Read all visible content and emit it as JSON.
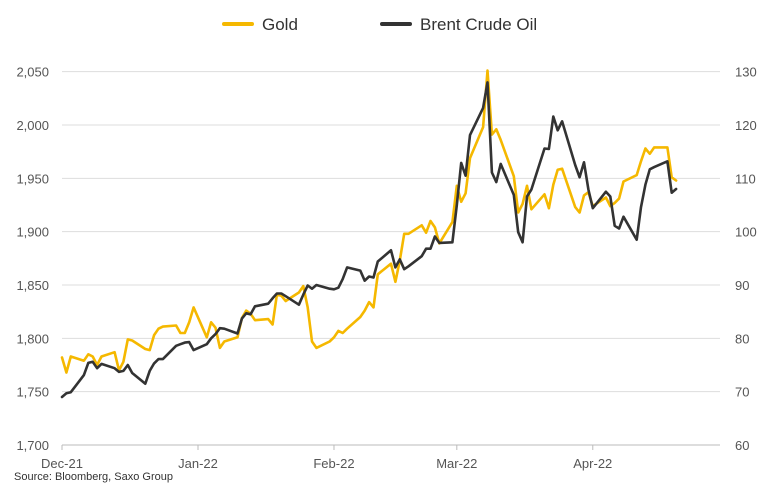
{
  "chart_data": {
    "type": "line",
    "legend": {
      "placement": "top-center",
      "entries": [
        "Gold",
        "Brent Crude Oil"
      ]
    },
    "x_axis": {
      "type": "date",
      "range": [
        "2021-12-01",
        "2022-04-30"
      ],
      "ticks": [
        {
          "date": "2021-12-01",
          "label": "Dec-21"
        },
        {
          "date": "2022-01-01",
          "label": "Jan-22"
        },
        {
          "date": "2022-02-01",
          "label": "Feb-22"
        },
        {
          "date": "2022-03-01",
          "label": "Mar-22"
        },
        {
          "date": "2022-04-01",
          "label": "Apr-22"
        }
      ]
    },
    "y_left": {
      "range": [
        1700,
        2075
      ],
      "ticks": [
        1700,
        1750,
        1800,
        1850,
        1900,
        1950,
        2000,
        2050
      ],
      "tick_labels": [
        "1,700",
        "1,750",
        "1,800",
        "1,850",
        "1,900",
        "1,950",
        "2,000",
        "2,050"
      ]
    },
    "y_right": {
      "range": [
        60,
        135
      ],
      "ticks": [
        60,
        70,
        80,
        90,
        100,
        110,
        120,
        130
      ],
      "tick_labels": [
        "60",
        "70",
        "80",
        "90",
        "100",
        "110",
        "120",
        "130"
      ]
    },
    "grid": {
      "horizontal": true,
      "vertical": false
    },
    "series": [
      {
        "name": "Gold",
        "axis": "left",
        "color": "#F5B800",
        "points": [
          [
            "2021-12-01",
            1782
          ],
          [
            "2021-12-02",
            1768
          ],
          [
            "2021-12-03",
            1783
          ],
          [
            "2021-12-06",
            1779
          ],
          [
            "2021-12-07",
            1785
          ],
          [
            "2021-12-08",
            1783
          ],
          [
            "2021-12-09",
            1775
          ],
          [
            "2021-12-10",
            1783
          ],
          [
            "2021-12-13",
            1787
          ],
          [
            "2021-12-14",
            1770
          ],
          [
            "2021-12-15",
            1778
          ],
          [
            "2021-12-16",
            1799
          ],
          [
            "2021-12-17",
            1798
          ],
          [
            "2021-12-20",
            1790
          ],
          [
            "2021-12-21",
            1789
          ],
          [
            "2021-12-22",
            1803
          ],
          [
            "2021-12-23",
            1809
          ],
          [
            "2021-12-24",
            1811
          ],
          [
            "2021-12-27",
            1812
          ],
          [
            "2021-12-28",
            1805
          ],
          [
            "2021-12-29",
            1805
          ],
          [
            "2021-12-30",
            1815
          ],
          [
            "2021-12-31",
            1829
          ],
          [
            "2022-01-03",
            1801
          ],
          [
            "2022-01-04",
            1815
          ],
          [
            "2022-01-05",
            1810
          ],
          [
            "2022-01-06",
            1791
          ],
          [
            "2022-01-07",
            1797
          ],
          [
            "2022-01-10",
            1801
          ],
          [
            "2022-01-11",
            1819
          ],
          [
            "2022-01-12",
            1826
          ],
          [
            "2022-01-13",
            1823
          ],
          [
            "2022-01-14",
            1817
          ],
          [
            "2022-01-17",
            1818
          ],
          [
            "2022-01-18",
            1813
          ],
          [
            "2022-01-19",
            1841
          ],
          [
            "2022-01-20",
            1840
          ],
          [
            "2022-01-21",
            1835
          ],
          [
            "2022-01-24",
            1843
          ],
          [
            "2022-01-25",
            1849
          ],
          [
            "2022-01-26",
            1829
          ],
          [
            "2022-01-27",
            1797
          ],
          [
            "2022-01-28",
            1791
          ],
          [
            "2022-01-31",
            1797
          ],
          [
            "2022-02-01",
            1801
          ],
          [
            "2022-02-02",
            1807
          ],
          [
            "2022-02-03",
            1805
          ],
          [
            "2022-02-04",
            1809
          ],
          [
            "2022-02-07",
            1820
          ],
          [
            "2022-02-08",
            1826
          ],
          [
            "2022-02-09",
            1834
          ],
          [
            "2022-02-10",
            1829
          ],
          [
            "2022-02-11",
            1860
          ],
          [
            "2022-02-14",
            1870
          ],
          [
            "2022-02-15",
            1853
          ],
          [
            "2022-02-16",
            1873
          ],
          [
            "2022-02-17",
            1898
          ],
          [
            "2022-02-18",
            1898
          ],
          [
            "2022-02-21",
            1906
          ],
          [
            "2022-02-22",
            1899
          ],
          [
            "2022-02-23",
            1910
          ],
          [
            "2022-02-24",
            1904
          ],
          [
            "2022-02-25",
            1889
          ],
          [
            "2022-02-28",
            1909
          ],
          [
            "2022-03-01",
            1943
          ],
          [
            "2022-03-02",
            1928
          ],
          [
            "2022-03-03",
            1936
          ],
          [
            "2022-03-04",
            1969
          ],
          [
            "2022-03-07",
            1998
          ],
          [
            "2022-03-08",
            2051
          ],
          [
            "2022-03-09",
            1991
          ],
          [
            "2022-03-10",
            1996
          ],
          [
            "2022-03-11",
            1986
          ],
          [
            "2022-03-14",
            1952
          ],
          [
            "2022-03-15",
            1918
          ],
          [
            "2022-03-16",
            1926
          ],
          [
            "2022-03-17",
            1943
          ],
          [
            "2022-03-18",
            1921
          ],
          [
            "2022-03-21",
            1935
          ],
          [
            "2022-03-22",
            1922
          ],
          [
            "2022-03-23",
            1944
          ],
          [
            "2022-03-24",
            1958
          ],
          [
            "2022-03-25",
            1959
          ],
          [
            "2022-03-28",
            1923
          ],
          [
            "2022-03-29",
            1918
          ],
          [
            "2022-03-30",
            1934
          ],
          [
            "2022-03-31",
            1937
          ],
          [
            "2022-04-01",
            1924
          ],
          [
            "2022-04-04",
            1932
          ],
          [
            "2022-04-05",
            1924
          ],
          [
            "2022-04-06",
            1927
          ],
          [
            "2022-04-07",
            1931
          ],
          [
            "2022-04-08",
            1947
          ],
          [
            "2022-04-11",
            1953
          ],
          [
            "2022-04-12",
            1966
          ],
          [
            "2022-04-13",
            1978
          ],
          [
            "2022-04-14",
            1973
          ],
          [
            "2022-04-15",
            1979
          ],
          [
            "2022-04-18",
            1979
          ],
          [
            "2022-04-19",
            1951
          ],
          [
            "2022-04-20",
            1948
          ]
        ]
      },
      {
        "name": "Brent Crude Oil",
        "axis": "right",
        "color": "#333333",
        "points": [
          [
            "2021-12-01",
            69
          ],
          [
            "2021-12-02",
            69.7
          ],
          [
            "2021-12-03",
            69.9
          ],
          [
            "2021-12-06",
            73.1
          ],
          [
            "2021-12-07",
            75.4
          ],
          [
            "2021-12-08",
            75.6
          ],
          [
            "2021-12-09",
            74.4
          ],
          [
            "2021-12-10",
            75.2
          ],
          [
            "2021-12-13",
            74.4
          ],
          [
            "2021-12-14",
            73.7
          ],
          [
            "2021-12-15",
            73.9
          ],
          [
            "2021-12-16",
            75
          ],
          [
            "2021-12-17",
            73.5
          ],
          [
            "2021-12-20",
            71.5
          ],
          [
            "2021-12-21",
            73.9
          ],
          [
            "2021-12-22",
            75.3
          ],
          [
            "2021-12-23",
            76.1
          ],
          [
            "2021-12-24",
            76.1
          ],
          [
            "2021-12-27",
            78.6
          ],
          [
            "2021-12-28",
            78.9
          ],
          [
            "2021-12-29",
            79.2
          ],
          [
            "2021-12-30",
            79.3
          ],
          [
            "2021-12-31",
            77.8
          ],
          [
            "2022-01-03",
            78.9
          ],
          [
            "2022-01-04",
            80
          ],
          [
            "2022-01-05",
            80.8
          ],
          [
            "2022-01-06",
            81.9
          ],
          [
            "2022-01-07",
            81.8
          ],
          [
            "2022-01-10",
            80.9
          ],
          [
            "2022-01-11",
            83.7
          ],
          [
            "2022-01-12",
            84.7
          ],
          [
            "2022-01-13",
            84.5
          ],
          [
            "2022-01-14",
            86
          ],
          [
            "2022-01-17",
            86.5
          ],
          [
            "2022-01-18",
            87.5
          ],
          [
            "2022-01-19",
            88.4
          ],
          [
            "2022-01-20",
            88.4
          ],
          [
            "2022-01-21",
            87.9
          ],
          [
            "2022-01-24",
            86.3
          ],
          [
            "2022-01-25",
            88.2
          ],
          [
            "2022-01-26",
            89.9
          ],
          [
            "2022-01-27",
            89.3
          ],
          [
            "2022-01-28",
            90
          ],
          [
            "2022-01-31",
            89.3
          ],
          [
            "2022-02-01",
            89.2
          ],
          [
            "2022-02-02",
            89.5
          ],
          [
            "2022-02-03",
            91.1
          ],
          [
            "2022-02-04",
            93.3
          ],
          [
            "2022-02-07",
            92.7
          ],
          [
            "2022-02-08",
            90.8
          ],
          [
            "2022-02-09",
            91.6
          ],
          [
            "2022-02-10",
            91.4
          ],
          [
            "2022-02-11",
            94.4
          ],
          [
            "2022-02-14",
            96.5
          ],
          [
            "2022-02-15",
            93.3
          ],
          [
            "2022-02-16",
            94.8
          ],
          [
            "2022-02-17",
            92.97
          ],
          [
            "2022-02-18",
            93.5
          ],
          [
            "2022-02-21",
            95.4
          ],
          [
            "2022-02-22",
            96.8
          ],
          [
            "2022-02-23",
            96.8
          ],
          [
            "2022-02-24",
            99.1
          ],
          [
            "2022-02-25",
            97.9
          ],
          [
            "2022-02-28",
            98
          ],
          [
            "2022-03-01",
            104.97
          ],
          [
            "2022-03-02",
            112.9
          ],
          [
            "2022-03-03",
            110.5
          ],
          [
            "2022-03-04",
            118.1
          ],
          [
            "2022-03-07",
            123.2
          ],
          [
            "2022-03-08",
            127.98
          ],
          [
            "2022-03-09",
            111.1
          ],
          [
            "2022-03-10",
            109.3
          ],
          [
            "2022-03-11",
            112.7
          ],
          [
            "2022-03-14",
            106.9
          ],
          [
            "2022-03-15",
            99.9
          ],
          [
            "2022-03-16",
            98
          ],
          [
            "2022-03-17",
            106.6
          ],
          [
            "2022-03-18",
            107.9
          ],
          [
            "2022-03-21",
            115.6
          ],
          [
            "2022-03-22",
            115.5
          ],
          [
            "2022-03-23",
            121.6
          ],
          [
            "2022-03-24",
            119
          ],
          [
            "2022-03-25",
            120.7
          ],
          [
            "2022-03-28",
            112.5
          ],
          [
            "2022-03-29",
            110.2
          ],
          [
            "2022-03-30",
            113
          ],
          [
            "2022-03-31",
            107.9
          ],
          [
            "2022-04-01",
            104.4
          ],
          [
            "2022-04-04",
            107.5
          ],
          [
            "2022-04-05",
            106.6
          ],
          [
            "2022-04-06",
            101.1
          ],
          [
            "2022-04-07",
            100.6
          ],
          [
            "2022-04-08",
            102.8
          ],
          [
            "2022-04-11",
            98.5
          ],
          [
            "2022-04-12",
            104.6
          ],
          [
            "2022-04-13",
            108.8
          ],
          [
            "2022-04-14",
            111.7
          ],
          [
            "2022-04-15",
            112.1
          ],
          [
            "2022-04-18",
            113.2
          ],
          [
            "2022-04-19",
            107.3
          ],
          [
            "2022-04-20",
            108
          ]
        ]
      }
    ]
  },
  "source": "Source: Bloomberg, Saxo Group"
}
